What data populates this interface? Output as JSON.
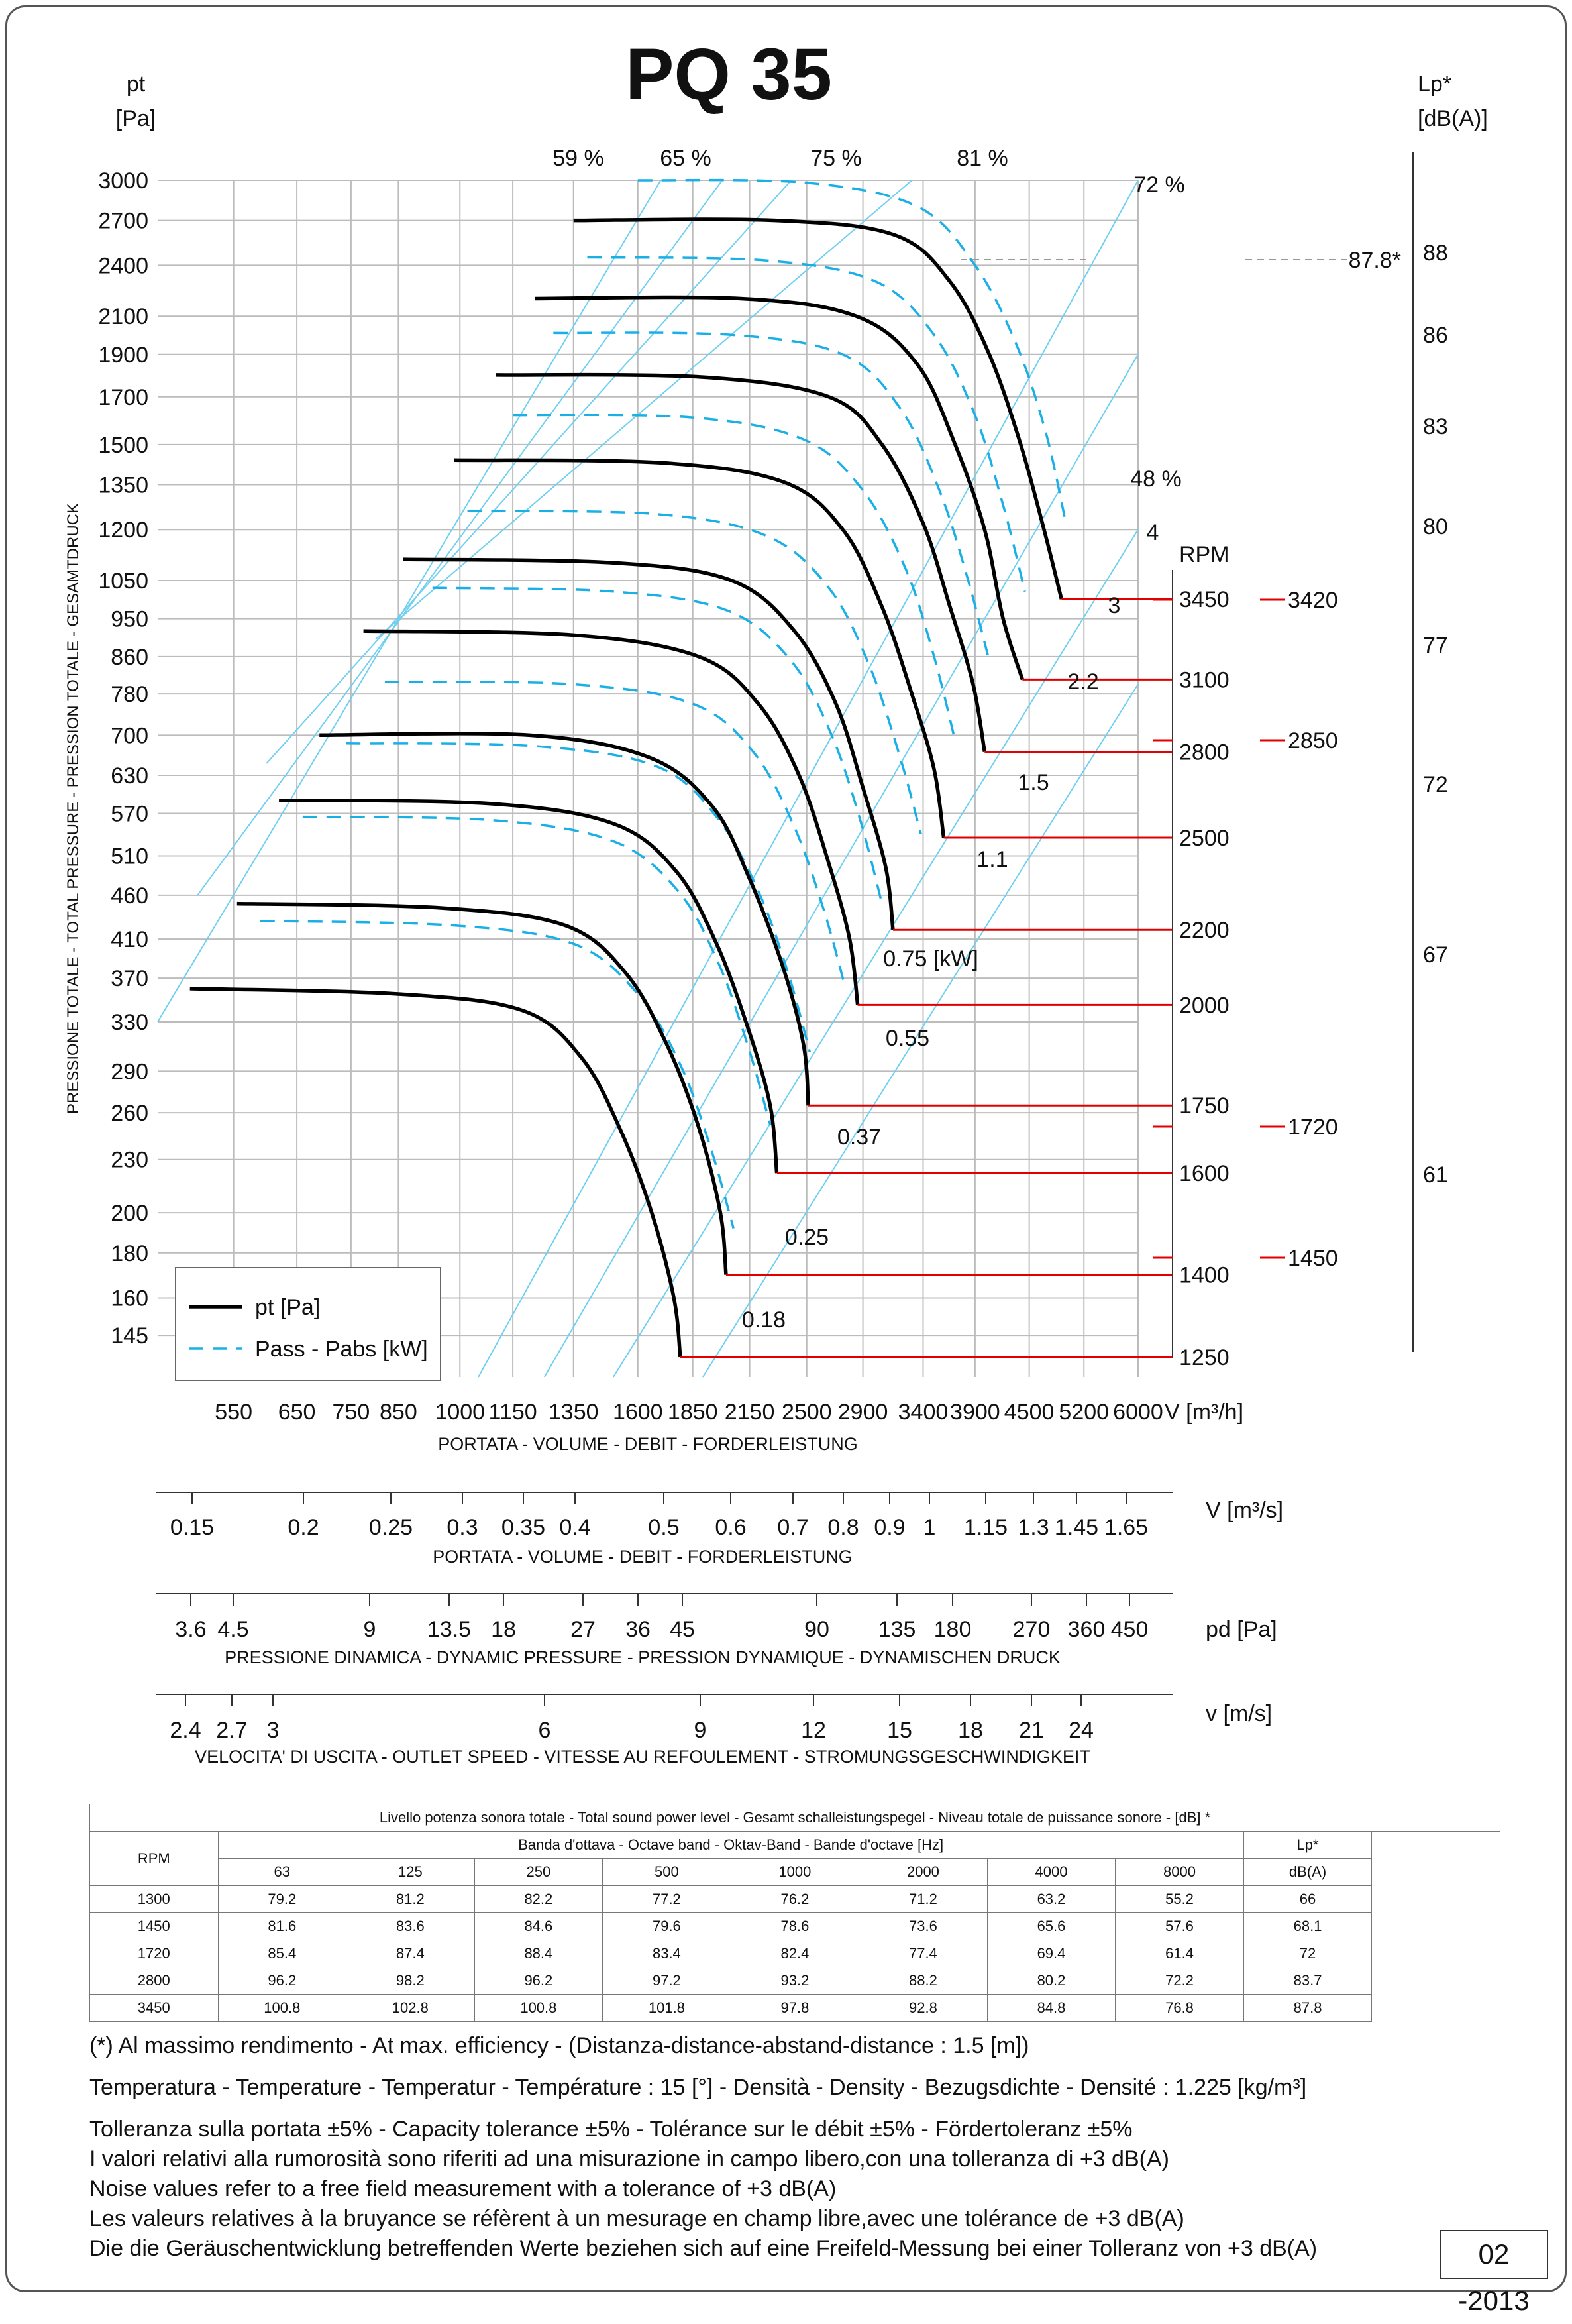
{
  "header": {
    "title": "PQ 35",
    "y_unit_top": "pt",
    "y_unit_bottom": "[Pa]",
    "lp_unit_top": "Lp*",
    "lp_unit_bottom": "[dB(A)]"
  },
  "chart_data": {
    "type": "line",
    "title": "PQ 35",
    "ylabel": "PRESSIONE TOTALE - TOTAL PRESSURE - PRESSION TOTALE - GESAMTDRUCK",
    "xlabel": "PORTATA - VOLUME - DEBIT - FORDERLEISTUNG",
    "x_unit": "V [m³/h]",
    "y_unit": "pt [Pa]",
    "x_scale": "log",
    "y_scale": "log",
    "xlim": [
      450,
      6000
    ],
    "ylim": [
      130,
      3000
    ],
    "grid": true,
    "legend_position": "bottom-left",
    "x_ticks": [
      550,
      650,
      750,
      850,
      1000,
      1150,
      1350,
      1600,
      1850,
      2150,
      2500,
      2900,
      3400,
      3900,
      4500,
      5200,
      6000
    ],
    "y_ticks": [
      3000,
      2700,
      2400,
      2100,
      1900,
      1700,
      1500,
      1350,
      1200,
      1050,
      950,
      860,
      780,
      700,
      630,
      570,
      510,
      460,
      410,
      370,
      330,
      290,
      260,
      230,
      200,
      180,
      160,
      145
    ],
    "legend": [
      {
        "label": "pt [Pa]",
        "style": "solid",
        "color": "#000000"
      },
      {
        "label": "Pass - Pabs [kW]",
        "style": "dashed",
        "color": "#1ab0e6"
      }
    ],
    "efficiency_labels": [
      "59 %",
      "65 %",
      "75 %",
      "81 %",
      "72 %",
      "48 %"
    ],
    "rpm_header": "RPM",
    "rpm_labels": [
      "3450",
      "3100",
      "2800",
      "2500",
      "2200",
      "2000",
      "1750",
      "1600",
      "1400",
      "1250"
    ],
    "rpm_side": [
      "3420",
      "2850",
      "1720",
      "1450"
    ],
    "power_labels": [
      "4",
      "3",
      "2.2",
      "1.5",
      "1.1",
      "0.75  [kW]",
      "0.55",
      "0.37",
      "0.25",
      "0.18"
    ],
    "power_unit": "[kW]",
    "lp_scale": [
      "88",
      "86",
      "83",
      "80",
      "77",
      "72",
      "67",
      "61"
    ],
    "lp_marker": "87.8*",
    "series": [
      {
        "rpm": 3450,
        "points": [
          [
            1350,
            2700
          ],
          [
            2300,
            2700
          ],
          [
            3150,
            2600
          ],
          [
            3650,
            2300
          ],
          [
            4050,
            1900
          ],
          [
            4400,
            1500
          ],
          [
            4700,
            1180
          ],
          [
            4900,
            1000
          ]
        ]
      },
      {
        "rpm": 3100,
        "points": [
          [
            1220,
            2200
          ],
          [
            2100,
            2200
          ],
          [
            2850,
            2100
          ],
          [
            3350,
            1850
          ],
          [
            3700,
            1500
          ],
          [
            4000,
            1200
          ],
          [
            4200,
            950
          ],
          [
            4420,
            810
          ]
        ]
      },
      {
        "rpm": 2800,
        "points": [
          [
            1100,
            1800
          ],
          [
            1900,
            1790
          ],
          [
            2650,
            1700
          ],
          [
            3050,
            1500
          ],
          [
            3400,
            1220
          ],
          [
            3650,
            980
          ],
          [
            3880,
            800
          ],
          [
            4000,
            670
          ]
        ]
      },
      {
        "rpm": 2500,
        "points": [
          [
            985,
            1440
          ],
          [
            1700,
            1430
          ],
          [
            2350,
            1360
          ],
          [
            2750,
            1200
          ],
          [
            3050,
            980
          ],
          [
            3300,
            780
          ],
          [
            3500,
            640
          ],
          [
            3590,
            535
          ]
        ]
      },
      {
        "rpm": 2200,
        "points": [
          [
            860,
            1110
          ],
          [
            1500,
            1100
          ],
          [
            2050,
            1050
          ],
          [
            2420,
            920
          ],
          [
            2700,
            760
          ],
          [
            2900,
            610
          ],
          [
            3080,
            495
          ],
          [
            3140,
            420
          ]
        ]
      },
      {
        "rpm": 2000,
        "points": [
          [
            775,
            920
          ],
          [
            1350,
            910
          ],
          [
            1880,
            860
          ],
          [
            2200,
            760
          ],
          [
            2450,
            630
          ],
          [
            2650,
            500
          ],
          [
            2800,
            410
          ],
          [
            2860,
            345
          ]
        ]
      },
      {
        "rpm": 1750,
        "points": [
          [
            690,
            700
          ],
          [
            1200,
            700
          ],
          [
            1650,
            660
          ],
          [
            1950,
            580
          ],
          [
            2150,
            480
          ],
          [
            2350,
            380
          ],
          [
            2480,
            310
          ],
          [
            2510,
            265
          ]
        ]
      },
      {
        "rpm": 1600,
        "points": [
          [
            620,
            590
          ],
          [
            1080,
            585
          ],
          [
            1500,
            555
          ],
          [
            1770,
            490
          ],
          [
            1970,
            405
          ],
          [
            2140,
            325
          ],
          [
            2270,
            265
          ],
          [
            2310,
            222
          ]
        ]
      },
      {
        "rpm": 1400,
        "points": [
          [
            555,
            450
          ],
          [
            950,
            445
          ],
          [
            1320,
            425
          ],
          [
            1550,
            375
          ],
          [
            1730,
            310
          ],
          [
            1880,
            250
          ],
          [
            1990,
            200
          ],
          [
            2020,
            170
          ]
        ]
      },
      {
        "rpm": 1250,
        "points": [
          [
            490,
            360
          ],
          [
            850,
            355
          ],
          [
            1180,
            340
          ],
          [
            1380,
            300
          ],
          [
            1530,
            248
          ],
          [
            1660,
            200
          ],
          [
            1760,
            160
          ],
          [
            1790,
            137
          ]
        ]
      }
    ],
    "power_series": [
      {
        "kw": "4",
        "points": [
          [
            1600,
            3000
          ],
          [
            2500,
            2980
          ],
          [
            3350,
            2800
          ],
          [
            3900,
            2400
          ],
          [
            4350,
            1950
          ],
          [
            4700,
            1550
          ],
          [
            4950,
            1230
          ]
        ]
      },
      {
        "kw": "3",
        "points": [
          [
            1400,
            2450
          ],
          [
            2250,
            2430
          ],
          [
            3000,
            2300
          ],
          [
            3500,
            2000
          ],
          [
            3900,
            1620
          ],
          [
            4200,
            1280
          ],
          [
            4450,
            1020
          ]
        ]
      },
      {
        "kw": "2.2",
        "points": [
          [
            1280,
            2010
          ],
          [
            2050,
            2000
          ],
          [
            2750,
            1900
          ],
          [
            3200,
            1650
          ],
          [
            3550,
            1330
          ],
          [
            3820,
            1060
          ],
          [
            4050,
            850
          ]
        ]
      },
      {
        "kw": "1.5",
        "points": [
          [
            1150,
            1620
          ],
          [
            1850,
            1610
          ],
          [
            2480,
            1520
          ],
          [
            2900,
            1330
          ],
          [
            3250,
            1080
          ],
          [
            3500,
            860
          ],
          [
            3700,
            690
          ]
        ]
      },
      {
        "kw": "1.1",
        "points": [
          [
            1020,
            1260
          ],
          [
            1680,
            1250
          ],
          [
            2250,
            1180
          ],
          [
            2650,
            1030
          ],
          [
            2950,
            840
          ],
          [
            3200,
            660
          ],
          [
            3380,
            540
          ]
        ]
      },
      {
        "kw": "0.75",
        "points": [
          [
            930,
            1030
          ],
          [
            1500,
            1020
          ],
          [
            2030,
            970
          ],
          [
            2400,
            850
          ],
          [
            2670,
            700
          ],
          [
            2880,
            560
          ],
          [
            3050,
            450
          ]
        ]
      },
      {
        "kw": "0.55",
        "points": [
          [
            820,
            805
          ],
          [
            1350,
            800
          ],
          [
            1850,
            760
          ],
          [
            2170,
            670
          ],
          [
            2420,
            550
          ],
          [
            2620,
            440
          ],
          [
            2770,
            360
          ]
        ]
      },
      {
        "kw": "0.37",
        "points": [
          [
            740,
            685
          ],
          [
            1220,
            680
          ],
          [
            1680,
            645
          ],
          [
            1970,
            565
          ],
          [
            2200,
            465
          ],
          [
            2380,
            375
          ],
          [
            2520,
            305
          ]
        ]
      },
      {
        "kw": "0.25",
        "points": [
          [
            660,
            565
          ],
          [
            1090,
            560
          ],
          [
            1500,
            530
          ],
          [
            1780,
            465
          ],
          [
            1980,
            385
          ],
          [
            2140,
            310
          ],
          [
            2270,
            252
          ]
        ]
      },
      {
        "kw": "0.18",
        "points": [
          [
            590,
            430
          ],
          [
            980,
            425
          ],
          [
            1350,
            405
          ],
          [
            1600,
            355
          ],
          [
            1790,
            295
          ],
          [
            1940,
            237
          ],
          [
            2060,
            192
          ]
        ]
      }
    ],
    "efficiency_lines": [
      [
        [
          450,
          330
        ],
        [
          1700,
          3000
        ]
      ],
      [
        [
          500,
          460
        ],
        [
          2000,
          3000
        ]
      ],
      [
        [
          600,
          650
        ],
        [
          2400,
          3000
        ]
      ],
      [
        [
          800,
          900
        ],
        [
          3300,
          3000
        ]
      ],
      [
        [
          1050,
          130
        ],
        [
          6000,
          3000
        ]
      ],
      [
        [
          1250,
          130
        ],
        [
          6000,
          1900
        ]
      ],
      [
        [
          1500,
          130
        ],
        [
          6000,
          1200
        ]
      ],
      [
        [
          1900,
          130
        ],
        [
          6000,
          800
        ]
      ]
    ]
  },
  "scales": {
    "flow_m3s": {
      "unit": "V  [m³/s]",
      "caption": "PORTATA - VOLUME - DEBIT - FORDERLEISTUNG",
      "labels": [
        "0.15",
        "0.2",
        "0.25",
        "0.3",
        "0.35",
        "0.4",
        "0.5",
        "0.6",
        "0.7",
        "0.8",
        "0.9",
        "1",
        "1.15",
        "1.3",
        "1.45",
        "1.65"
      ]
    },
    "pdyn": {
      "unit": "pd  [Pa]",
      "caption": "PRESSIONE DINAMICA - DYNAMIC PRESSURE - PRESSION DYNAMIQUE - DYNAMISCHEN DRUCK",
      "labels": [
        "3.6",
        "4.5",
        "9",
        "13.5",
        "18",
        "27",
        "36",
        "45",
        "90",
        "135",
        "180",
        "270",
        "360",
        "450"
      ]
    },
    "speed": {
      "unit": "v  [m/s]",
      "caption": "VELOCITA' DI USCITA - OUTLET SPEED - VITESSE AU REFOULEMENT - STROMUNGSGESCHWINDIGKEIT",
      "labels": [
        "2.4",
        "2.7",
        "3",
        "6",
        "9",
        "12",
        "15",
        "18",
        "21",
        "24"
      ]
    }
  },
  "sound_table": {
    "title": "Livello potenza sonora totale - Total sound power level - Gesamt schalleistungspegel - Niveau totale de puissance sonore - [dB]   *",
    "band_header": "Banda d'ottava - Octave band - Oktav-Band - Bande d'octave [Hz]",
    "rpm_header": "RPM",
    "lp_header": "Lp*",
    "lp_unit": "dB(A)",
    "bands": [
      "63",
      "125",
      "250",
      "500",
      "1000",
      "2000",
      "4000",
      "8000"
    ],
    "rows": [
      [
        "1300",
        "79.2",
        "81.2",
        "82.2",
        "77.2",
        "76.2",
        "71.2",
        "63.2",
        "55.2",
        "66"
      ],
      [
        "1450",
        "81.6",
        "83.6",
        "84.6",
        "79.6",
        "78.6",
        "73.6",
        "65.6",
        "57.6",
        "68.1"
      ],
      [
        "1720",
        "85.4",
        "87.4",
        "88.4",
        "83.4",
        "82.4",
        "77.4",
        "69.4",
        "61.4",
        "72"
      ],
      [
        "2800",
        "96.2",
        "98.2",
        "96.2",
        "97.2",
        "93.2",
        "88.2",
        "80.2",
        "72.2",
        "83.7"
      ],
      [
        "3450",
        "100.8",
        "102.8",
        "100.8",
        "101.8",
        "97.8",
        "92.8",
        "84.8",
        "76.8",
        "87.8"
      ]
    ]
  },
  "notes": [
    "(*) Al massimo rendimento - At max. efficiency - (Distanza-distance-abstand-distance : 1.5 [m])",
    "Temperatura - Temperature - Temperatur - Température : 15 [°]  -  Densità - Density - Bezugsdichte - Densité : 1.225 [kg/m³]",
    "Tolleranza sulla portata  ±5% - Capacity tolerance ±5% - Tolérance sur le débit ±5% - Fördertoleranz ±5%",
    "I valori relativi alla rumorosità sono riferiti ad una misurazione in campo libero,con una tolleranza di +3 dB(A)",
    "Noise values refer to a free field measurement with a tolerance of +3 dB(A)",
    "Les valeurs relatives à la bruyance se réfèrent à un mesurage en champ libre,avec une tolérance de +3 dB(A)",
    "Die die Geräuschentwicklung betreffenden Werte beziehen sich auf eine Freifeld-Messung bei einer Tolleranz von +3 dB(A)"
  ],
  "revision": "02 -2013"
}
